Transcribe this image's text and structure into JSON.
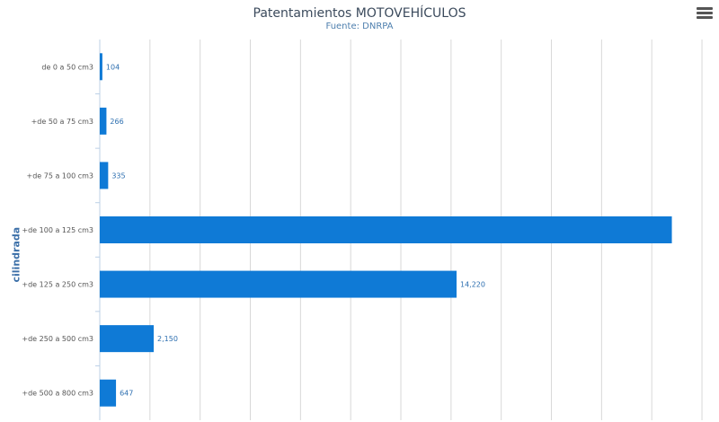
{
  "title": "Patentamientos MOTOVEHÍCULOS",
  "subtitle": "Fuente: DNRPA",
  "menu_icon": "hamburger-menu-icon",
  "colors": {
    "bar": "#0f7ad6",
    "grid": "#d8d8d8",
    "axis": "#bcd0e6"
  },
  "chart_data": {
    "type": "bar",
    "orientation": "horizontal",
    "title": "Patentamientos MOTOVEHÍCULOS",
    "subtitle": "Fuente: DNRPA",
    "xlabel": "",
    "ylabel": "cilindrada",
    "categories": [
      "de 0 a 50 cm3",
      "+de 50 a 75 cm3",
      "+de 75 a 100 cm3",
      "+de 100 a 125 cm3",
      "+de 125 a 250 cm3",
      "+de 250 a 500 cm3",
      "+de 500 a 800 cm3"
    ],
    "series": [
      {
        "values": [
          104,
          266,
          335,
          22800,
          14220,
          2150,
          647
        ],
        "labels": [
          "104",
          "266",
          "335",
          "",
          "14,220",
          "2,150",
          "647"
        ]
      }
    ],
    "xlim": [
      0,
      24500
    ],
    "grid": true,
    "legend": "none"
  }
}
